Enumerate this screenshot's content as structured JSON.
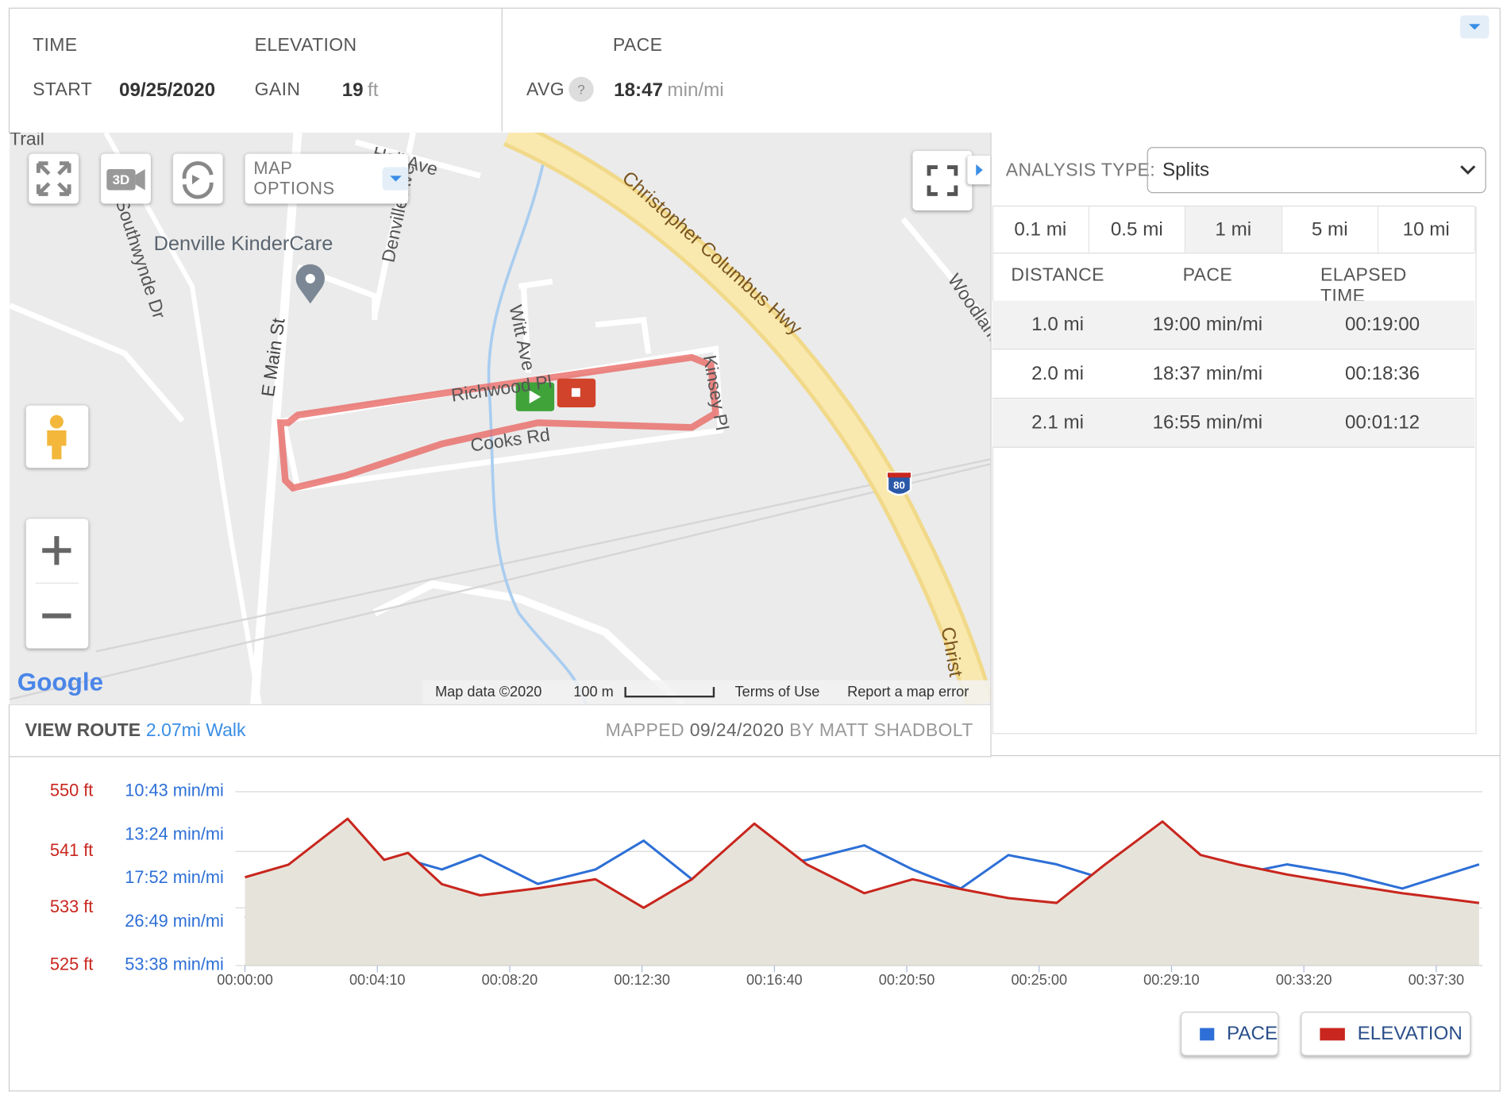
{
  "header": {
    "time_label": "TIME",
    "start_label": "START",
    "start_value": "09/25/2020",
    "elevation_label": "ELEVATION",
    "gain_label": "GAIN",
    "gain_value": "19",
    "gain_unit": "ft",
    "pace_label": "PACE",
    "avg_label": "AVG",
    "avg_help": "?",
    "avg_value": "18:47",
    "avg_unit": "min/mi"
  },
  "map": {
    "options": "MAP OPTIONS",
    "view_3d": "3D",
    "interstate": "80",
    "logo": "Google",
    "attribution": "Map data ©2020",
    "scale": "100 m",
    "terms": "Terms of Use",
    "report": "Report a map error",
    "labels": [
      "Trail",
      "Hall Ave",
      "Denville KinderCare",
      "Southwynde Dr",
      "Denville Ave",
      "E Main St",
      "Witt Ave",
      "Richwood Pl",
      "Cooks Rd",
      "Kinsey Pl",
      "Christopher Columbus Hwy",
      "Woodland",
      "Christ"
    ]
  },
  "route": {
    "view_label": "VIEW ROUTE",
    "link": "2.07mi Walk",
    "mapped_label": "MAPPED",
    "mapped_date": "09/24/2020",
    "mapped_by": "BY MATT SHADBOLT"
  },
  "analysis": {
    "type_label": "ANALYSIS TYPE:",
    "type_value": "Splits",
    "tabs": [
      "0.1 mi",
      "0.5 mi",
      "1 mi",
      "5 mi",
      "10 mi"
    ],
    "active_tab": 2,
    "columns": [
      "DISTANCE",
      "PACE",
      "ELAPSED TIME"
    ],
    "rows": [
      [
        "1.0 mi",
        "19:00 min/mi",
        "00:19:00"
      ],
      [
        "2.0 mi",
        "18:37 min/mi",
        "00:18:36"
      ],
      [
        "2.1 mi",
        "16:55 min/mi",
        "00:01:12"
      ]
    ]
  },
  "chart_data": {
    "type": "line",
    "x": [
      0,
      82,
      194,
      263,
      308,
      372,
      444,
      553,
      662,
      753,
      844,
      962,
      1062,
      1170,
      1261,
      1352,
      1442,
      1533,
      1624,
      1733,
      1805,
      1878,
      1968,
      2077,
      2186,
      2331
    ],
    "xlim": [
      0,
      2337
    ],
    "xticks": [
      {
        "value": 0,
        "label": "00:00:00"
      },
      {
        "value": 250,
        "label": "00:04:10"
      },
      {
        "value": 500,
        "label": "00:08:20"
      },
      {
        "value": 750,
        "label": "00:12:30"
      },
      {
        "value": 1000,
        "label": "00:16:40"
      },
      {
        "value": 1250,
        "label": "00:20:50"
      },
      {
        "value": 1500,
        "label": "00:25:00"
      },
      {
        "value": 1750,
        "label": "00:29:10"
      },
      {
        "value": 2000,
        "label": "00:33:20"
      },
      {
        "value": 2250,
        "label": "00:37:30"
      }
    ],
    "ylim": [
      525,
      550
    ],
    "yticks": [
      {
        "value": 525,
        "label": "525 ft"
      },
      {
        "value": 533.3,
        "label": "533 ft"
      },
      {
        "value": 541.4,
        "label": "541 ft"
      },
      {
        "value": 550,
        "label": "550 ft"
      }
    ],
    "y2lim": [
      1.12,
      5.59
    ],
    "y2ticks": [
      {
        "value": 1.12,
        "label": "53:38 min/mi"
      },
      {
        "value": 2.24,
        "label": "26:49 min/mi"
      },
      {
        "value": 3.36,
        "label": "17:52 min/mi"
      },
      {
        "value": 4.47,
        "label": "13:24 min/mi"
      },
      {
        "value": 5.59,
        "label": "10:43 min/mi"
      }
    ],
    "grid": true,
    "series": [
      {
        "name": "PACE",
        "color": "#2d6fd6",
        "axis": "y2",
        "values": [
          2.35,
          2.73,
          3.34,
          3.72,
          3.84,
          3.59,
          3.96,
          3.22,
          3.59,
          4.33,
          3.34,
          3.59,
          3.84,
          4.21,
          3.59,
          3.1,
          3.96,
          3.72,
          3.34,
          3.22,
          3.84,
          3.47,
          3.72,
          3.47,
          3.1,
          3.72
        ]
      },
      {
        "name": "ELEVATION",
        "color": "#c8261e",
        "area": "#e6e4da",
        "values": [
          537.7,
          539.5,
          546.1,
          540.2,
          541.2,
          536.7,
          535.1,
          536.1,
          537.4,
          533.3,
          537.4,
          545.4,
          539.5,
          535.4,
          537.4,
          536.0,
          534.7,
          534.0,
          539.5,
          545.7,
          540.9,
          539.5,
          538.1,
          536.7,
          535.4,
          534.0
        ]
      }
    ]
  }
}
